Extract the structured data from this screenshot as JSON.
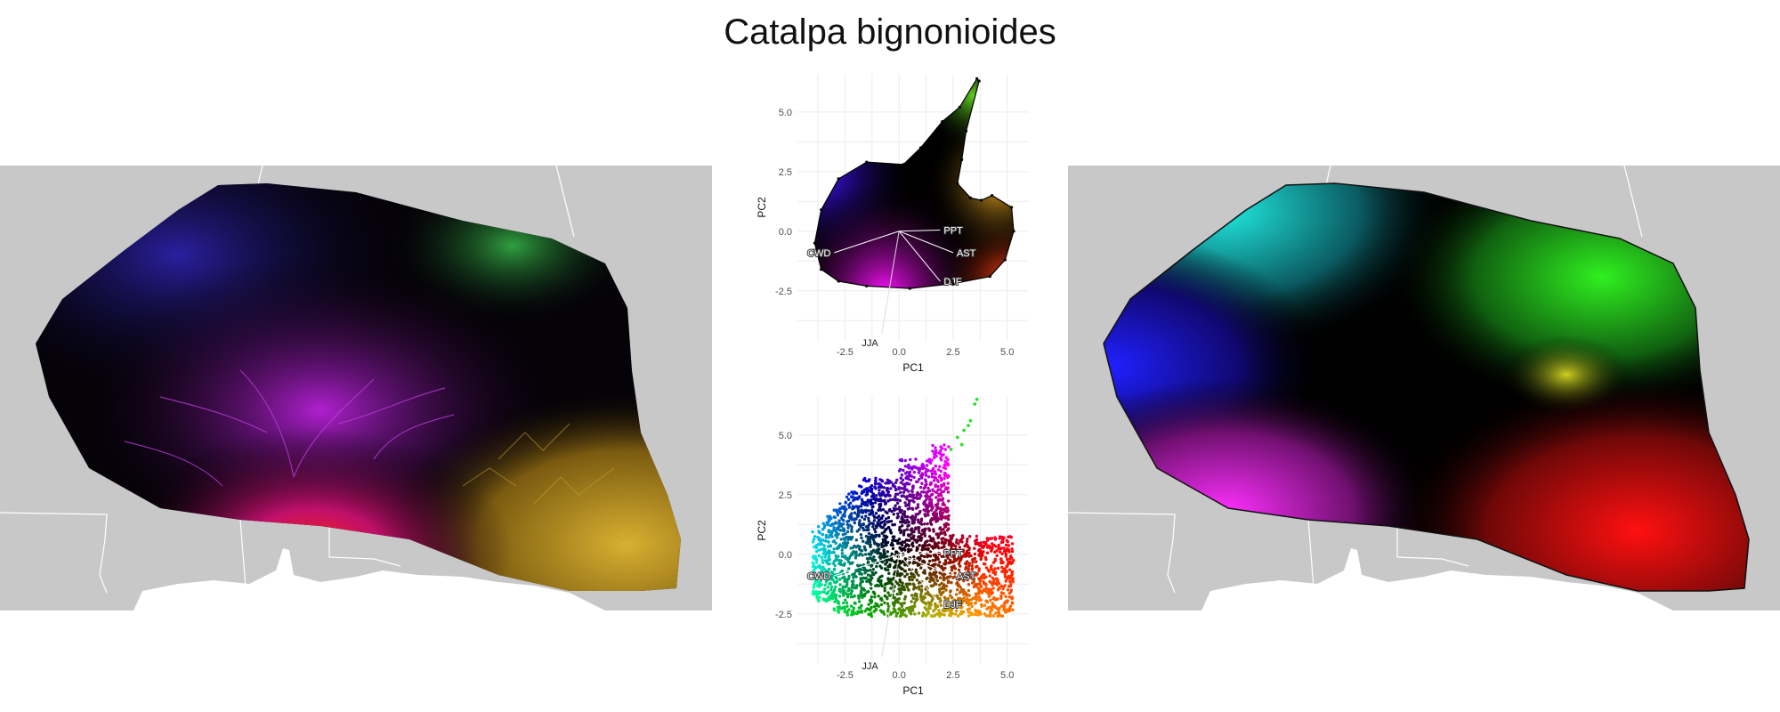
{
  "title": "Catalpa bignonioides",
  "chart_data": [
    {
      "type": "scatter",
      "panel": "pca-top",
      "title": "",
      "xlabel": "PC1",
      "ylabel": "PC2",
      "xlim": [
        -4.7,
        6.0
      ],
      "ylim": [
        -4.6,
        6.6
      ],
      "xticks": [
        "-2.5",
        "0.0",
        "2.5",
        "5.0"
      ],
      "xtick_values": [
        -2.5,
        0.0,
        2.5,
        5.0
      ],
      "yticks": [
        "-2.5",
        "0.0",
        "2.5",
        "5.0"
      ],
      "ytick_values": [
        -2.5,
        0.0,
        2.5,
        5.0
      ],
      "grid": true,
      "hull": [
        [
          -3.6,
          -1.6
        ],
        [
          -3.9,
          -0.5
        ],
        [
          -3.6,
          0.9
        ],
        [
          -2.8,
          2.2
        ],
        [
          -1.5,
          2.9
        ],
        [
          0.2,
          2.8
        ],
        [
          1.0,
          3.5
        ],
        [
          2.0,
          4.6
        ],
        [
          2.8,
          5.2
        ],
        [
          3.6,
          6.4
        ],
        [
          3.7,
          6.3
        ],
        [
          3.1,
          4.2
        ],
        [
          2.9,
          3.0
        ],
        [
          2.7,
          2.0
        ],
        [
          3.3,
          1.4
        ],
        [
          3.8,
          1.3
        ],
        [
          4.3,
          1.5
        ],
        [
          5.2,
          1.0
        ],
        [
          5.3,
          0.0
        ],
        [
          4.9,
          -1.2
        ],
        [
          4.2,
          -1.9
        ],
        [
          2.5,
          -2.2
        ],
        [
          0.5,
          -2.4
        ],
        [
          -1.5,
          -2.3
        ],
        [
          -2.8,
          -2.1
        ],
        [
          -3.6,
          -1.6
        ]
      ],
      "loadings": [
        {
          "name": "PPT",
          "x": 1.9,
          "y": 0.05
        },
        {
          "name": "AST",
          "x": 2.5,
          "y": -0.9
        },
        {
          "name": "DJF",
          "x": 1.9,
          "y": -2.1
        },
        {
          "name": "CWD",
          "x": -3.0,
          "y": -0.9
        },
        {
          "name": "JJA",
          "x": -0.8,
          "y": -4.3
        }
      ]
    },
    {
      "type": "scatter",
      "panel": "pca-bottom",
      "title": "",
      "xlabel": "PC1",
      "ylabel": "PC2",
      "xlim": [
        -4.7,
        6.0
      ],
      "ylim": [
        -4.6,
        6.6
      ],
      "xticks": [
        "-2.5",
        "0.0",
        "2.5",
        "5.0"
      ],
      "xtick_values": [
        -2.5,
        0.0,
        2.5,
        5.0
      ],
      "yticks": [
        "-2.5",
        "0.0",
        "2.5",
        "5.0"
      ],
      "ytick_values": [
        -2.5,
        0.0,
        2.5,
        5.0
      ],
      "grid": true,
      "loadings": [
        {
          "name": "PPT",
          "x": 1.9,
          "y": 0.05
        },
        {
          "name": "AST",
          "x": 2.5,
          "y": -0.9
        },
        {
          "name": "DJF",
          "x": 1.9,
          "y": -2.1
        },
        {
          "name": "CWD",
          "x": -3.0,
          "y": -0.9
        },
        {
          "name": "JJA",
          "x": -0.8,
          "y": -4.3
        }
      ]
    }
  ],
  "colors": {
    "map_bg": "#c8c8c8",
    "cyan": "#00e5e5",
    "green": "#20e020",
    "blue": "#1010ff",
    "magenta": "#ff20ff",
    "red": "#ff1010",
    "yellow": "#e8c020",
    "black": "#000000"
  }
}
